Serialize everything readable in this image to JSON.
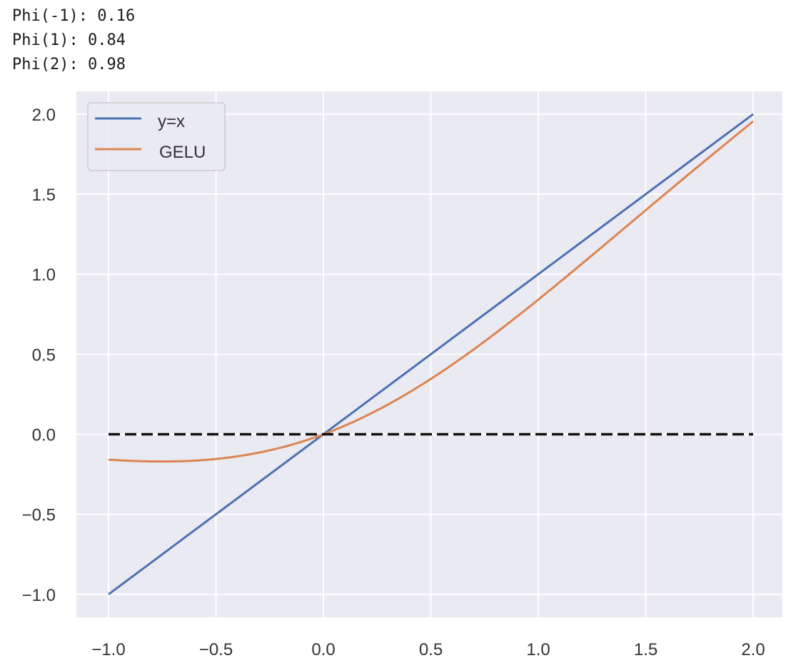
{
  "output": {
    "lines": [
      "Phi(-1): 0.16",
      "Phi(1): 0.84",
      "Phi(2): 0.98"
    ]
  },
  "colors": {
    "background": "#eaeaf2",
    "grid": "#ffffff",
    "series_yx": "#4c72b0",
    "series_gelu": "#dd8452",
    "zero_line": "#111111"
  },
  "chart_data": {
    "type": "line",
    "title": "",
    "xlabel": "",
    "ylabel": "",
    "xlim": [
      -1.15,
      2.13
    ],
    "ylim": [
      -1.15,
      2.14
    ],
    "xticks": [
      -1.0,
      -0.5,
      0.0,
      0.5,
      1.0,
      1.5,
      2.0
    ],
    "xtick_labels": [
      "−1.0",
      "−0.5",
      "0.0",
      "0.5",
      "1.0",
      "1.5",
      "2.0"
    ],
    "yticks": [
      2.0,
      1.5,
      1.0,
      0.5,
      0.0,
      -0.5,
      -1.0
    ],
    "ytick_labels": [
      "2.0",
      "1.5",
      "1.0",
      "0.5",
      "0.0",
      "−0.5",
      "−1.0"
    ],
    "grid": true,
    "legend_position": "upper left",
    "series": [
      {
        "name": "y=x",
        "color": "#4c72b0",
        "style": "solid",
        "x": [
          -1.0,
          2.0
        ],
        "y": [
          -1.0,
          2.0
        ]
      },
      {
        "name": "GELU",
        "color": "#dd8452",
        "style": "solid",
        "x": [
          -1.0,
          -0.75,
          -0.5,
          -0.25,
          0.0,
          0.25,
          0.5,
          0.75,
          1.0,
          1.25,
          1.5,
          1.75,
          2.0
        ],
        "y": [
          -0.159,
          -0.17,
          -0.154,
          -0.1,
          0.0,
          0.15,
          0.346,
          0.58,
          0.841,
          1.118,
          1.4,
          1.68,
          1.954
        ]
      },
      {
        "name": "zero",
        "color": "#111111",
        "style": "dashed",
        "x": [
          -1.0,
          2.0
        ],
        "y": [
          0.0,
          0.0
        ]
      }
    ]
  },
  "legend": {
    "items": [
      {
        "label": "y=x",
        "color": "#4c72b0"
      },
      {
        "label": "GELU",
        "color": "#dd8452"
      }
    ]
  }
}
